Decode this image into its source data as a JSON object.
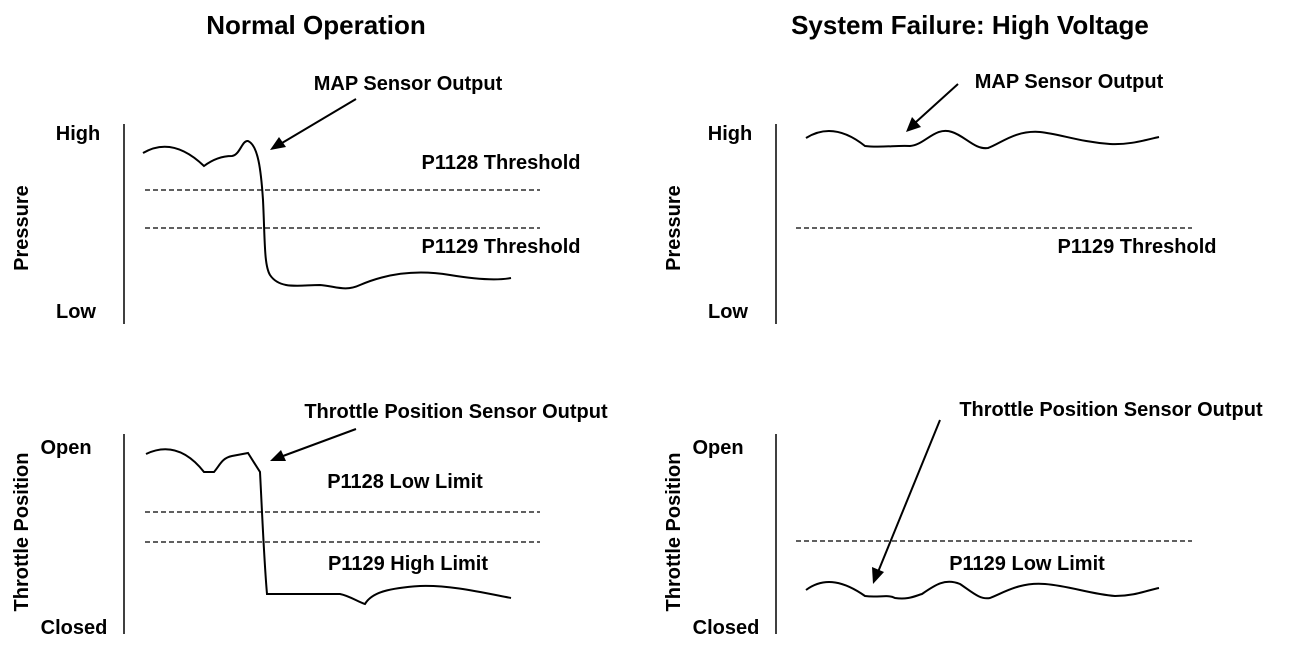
{
  "columns": {
    "left_title": "Normal Operation",
    "right_title": "System Failure: High Voltage"
  },
  "pressure_panels": {
    "ylabel": "Pressure",
    "high": "High",
    "low": "Low",
    "callout": "MAP Sensor Output",
    "left": {
      "threshold_upper": "P1128 Threshold",
      "threshold_lower": "P1129 Threshold"
    },
    "right": {
      "threshold": "P1129 Threshold"
    }
  },
  "throttle_panels": {
    "ylabel": "Throttle Position",
    "open": "Open",
    "closed": "Closed",
    "callout": "Throttle Position Sensor Output",
    "left": {
      "limit_upper": "P1128 Low Limit",
      "limit_lower": "P1129 High Limit"
    },
    "right": {
      "limit": "P1129 Low Limit"
    }
  }
}
